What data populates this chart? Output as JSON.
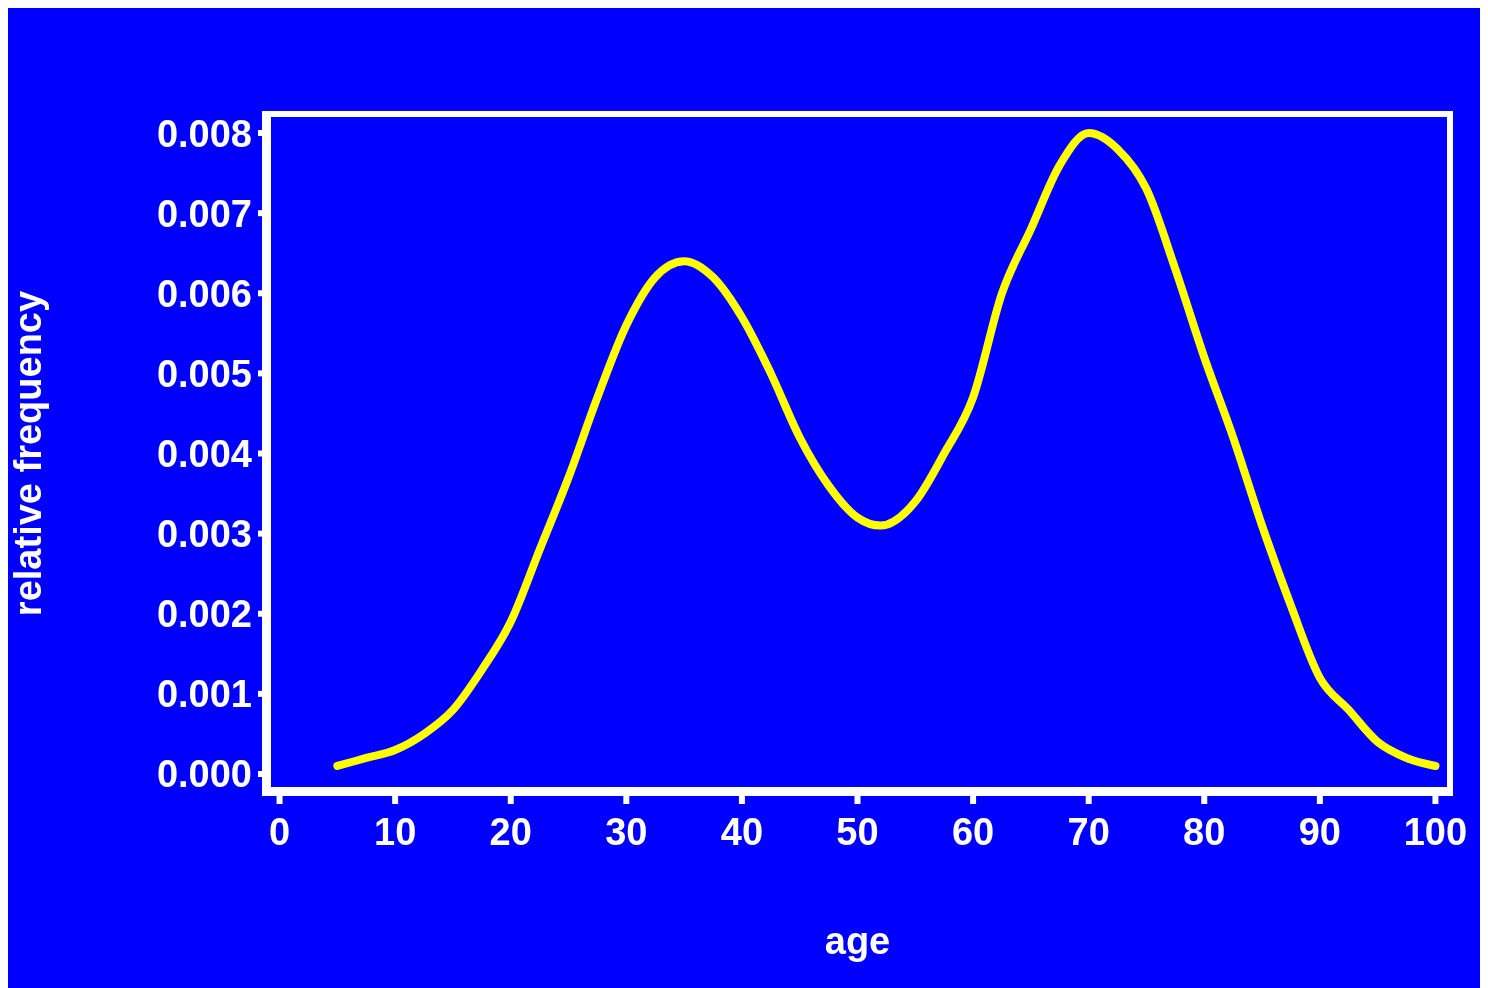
{
  "chart_data": {
    "type": "line",
    "xlabel": "age",
    "ylabel": "relative frequency",
    "x": [
      5,
      7.5,
      10,
      12.5,
      15,
      17.5,
      20,
      22.5,
      25,
      27.5,
      30,
      32.5,
      35,
      37.5,
      40,
      42.5,
      45,
      47.5,
      50,
      52,
      55,
      57.5,
      60,
      62.5,
      65,
      67.5,
      70,
      72.5,
      75,
      77.5,
      80,
      82.5,
      85,
      87.5,
      90,
      92.5,
      95,
      97.5,
      100
    ],
    "series": [
      {
        "color": "#ffff00",
        "values": [
          0.0001,
          0.0002,
          0.0003,
          0.0005,
          0.0008,
          0.0013,
          0.0019,
          0.0028,
          0.0037,
          0.0047,
          0.0056,
          0.0062,
          0.0064,
          0.0062,
          0.0057,
          0.005,
          0.0042,
          0.0036,
          0.0032,
          0.0031,
          0.0034,
          0.004,
          0.0047,
          0.006,
          0.0068,
          0.0076,
          0.008,
          0.0078,
          0.0073,
          0.0063,
          0.0052,
          0.0042,
          0.0031,
          0.0021,
          0.0012,
          0.0008,
          0.0004,
          0.0002,
          0.0001
        ]
      }
    ],
    "xlim": [
      -1,
      101
    ],
    "ylim": [
      -0.0002,
      0.0082
    ],
    "xticks": [
      0,
      10,
      20,
      30,
      40,
      50,
      60,
      70,
      80,
      90,
      100
    ],
    "yticks": [
      {
        "value": 0,
        "label": "0.000"
      },
      0.001,
      0.002,
      0.003,
      0.004,
      0.005,
      0.006,
      0.007,
      0.008
    ]
  }
}
